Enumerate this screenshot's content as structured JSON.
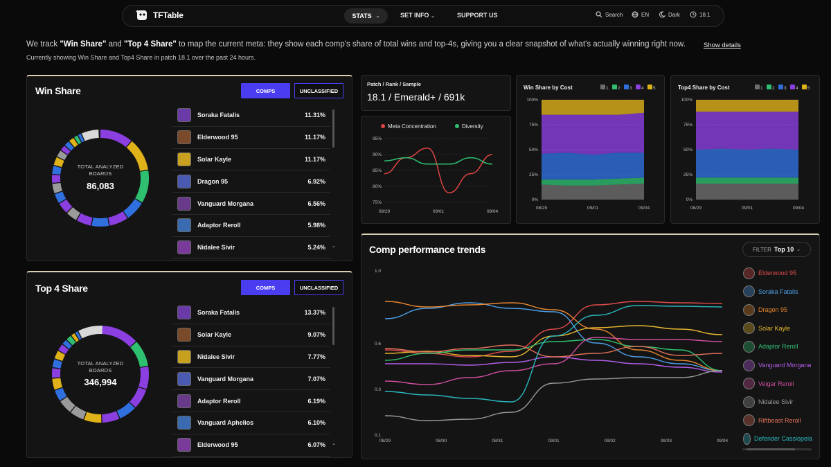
{
  "nav": {
    "brand": "TFTable",
    "stats": "STATS",
    "setinfo": "SET INFO",
    "support": "SUPPORT US",
    "search": "Search",
    "lang": "EN",
    "theme": "Dark",
    "patch": "18.1"
  },
  "intro": {
    "p1": "We track ",
    "q1": "\"Win Share\"",
    "p2": " and ",
    "q2": "\"Top 4 Share\"",
    "p3": " to map the current meta: they show each comp's share of total wins and top-4s, giving you a clear snapshot of what's actually winning right now.",
    "details": "Show details",
    "sub": "Currently showing Win Share and Top4 Share in patch 18.1 over the past 24 hours."
  },
  "win": {
    "title": "Win Share",
    "btn_comps": "COMPS",
    "btn_unclassified": "UNCLASSIFIED",
    "donut_label1": "TOTAL ANALYZED",
    "donut_label2": "BOARDS",
    "donut_value": "86,083",
    "rows": [
      {
        "name": "Soraka Fatalis",
        "pct": "11.31%"
      },
      {
        "name": "Elderwood 95",
        "pct": "11.17%"
      },
      {
        "name": "Solar Kayle",
        "pct": "11.17%"
      },
      {
        "name": "Dragon 95",
        "pct": "6.92%"
      },
      {
        "name": "Vanguard Morgana",
        "pct": "6.56%"
      },
      {
        "name": "Adaptor Reroll",
        "pct": "5.98%"
      },
      {
        "name": "Nidalee Sivir",
        "pct": "5.24%"
      }
    ]
  },
  "top4": {
    "title": "Top 4 Share",
    "btn_comps": "COMPS",
    "btn_unclassified": "UNCLASSIFIED",
    "donut_label1": "TOTAL ANALYZED",
    "donut_label2": "BOARDS",
    "donut_value": "346,994",
    "rows": [
      {
        "name": "Soraka Fatalis",
        "pct": "13.37%"
      },
      {
        "name": "Solar Kayle",
        "pct": "9.07%"
      },
      {
        "name": "Nidalee Sivir",
        "pct": "7.77%"
      },
      {
        "name": "Vanguard Morgana",
        "pct": "7.07%"
      },
      {
        "name": "Adaptor Reroll",
        "pct": "6.19%"
      },
      {
        "name": "Vanguard Aphelios",
        "pct": "6.10%"
      },
      {
        "name": "Elderwood 95",
        "pct": "6.07%"
      }
    ]
  },
  "summary": {
    "label": "Patch / Rank / Sample",
    "value": "18.1 / Emerald+ / 691k"
  },
  "colors": {
    "accent": "#4a3df0",
    "red": "#e04444",
    "green": "#2fbf71",
    "purple": "#8b3fe0",
    "blue": "#2f6fde",
    "yellow": "#e0b21a",
    "gray": "#6e6e6e"
  },
  "chart_data": [
    {
      "type": "line",
      "series": [
        {
          "name": "Meta Concentration",
          "values": [
            84,
            89,
            92,
            78,
            84,
            90
          ]
        },
        {
          "name": "Diversity",
          "values": [
            88,
            89,
            87,
            87,
            89,
            87
          ]
        }
      ],
      "xticks": [
        "08/29",
        "09/01",
        "09/04"
      ],
      "yticks": [
        "95%",
        "90%",
        "85%",
        "80%",
        "75%"
      ],
      "ylim": [
        75,
        95
      ]
    },
    {
      "type": "area",
      "title": "Win Share by Cost",
      "legend": [
        "1",
        "2",
        "3",
        "4",
        "5"
      ],
      "yticks": [
        "100%",
        "75%",
        "50%",
        "25%",
        "0%"
      ],
      "xticks": [
        "08/29",
        "09/01",
        "09/04"
      ],
      "series": [
        {
          "name": "1",
          "values": [
            15,
            14,
            14,
            15,
            16
          ]
        },
        {
          "name": "2",
          "values": [
            5,
            6,
            6,
            6,
            6
          ]
        },
        {
          "name": "3",
          "values": [
            26,
            27,
            25,
            26,
            25
          ]
        },
        {
          "name": "4",
          "values": [
            39,
            38,
            40,
            38,
            40
          ]
        },
        {
          "name": "5",
          "values": [
            15,
            15,
            15,
            15,
            13
          ]
        }
      ]
    },
    {
      "type": "area",
      "title": "Top4 Share by Cost",
      "legend": [
        "1",
        "2",
        "3",
        "4",
        "5"
      ],
      "yticks": [
        "100%",
        "75%",
        "50%",
        "25%",
        "0%"
      ],
      "xticks": [
        "08/29",
        "09/01",
        "09/04"
      ],
      "series": [
        {
          "name": "1",
          "values": [
            16,
            16,
            16,
            16,
            16
          ]
        },
        {
          "name": "2",
          "values": [
            6,
            6,
            6,
            6,
            6
          ]
        },
        {
          "name": "3",
          "values": [
            28,
            29,
            28,
            29,
            28
          ]
        },
        {
          "name": "4",
          "values": [
            38,
            37,
            38,
            37,
            38
          ]
        },
        {
          "name": "5",
          "values": [
            12,
            12,
            12,
            12,
            12
          ]
        }
      ]
    },
    {
      "type": "line",
      "title": "Comp performance trends",
      "filter_label": "FILTER",
      "filter_value": "Top 10",
      "yticks": [
        "1.0",
        "0.6",
        "0.3",
        "0.1"
      ],
      "xticks": [
        "08/29",
        "08/30",
        "08/31",
        "09/01",
        "09/02",
        "09/03",
        "09/04"
      ],
      "series": [
        {
          "name": "Elderwood 95",
          "color": "#e04b4b"
        },
        {
          "name": "Soraka Fatalis",
          "color": "#4ea0e8"
        },
        {
          "name": "Dragon 95",
          "color": "#e8862f"
        },
        {
          "name": "Solar Kayle",
          "color": "#e8b92f"
        },
        {
          "name": "Adaptor Reroll",
          "color": "#2fbf71"
        },
        {
          "name": "Vanguard Morgana",
          "color": "#b35de8"
        },
        {
          "name": "Veigar Reroll",
          "color": "#d04fa0"
        },
        {
          "name": "Nidalee Sivir",
          "color": "#9a9a9a"
        },
        {
          "name": "Riftbeast Reroll",
          "color": "#e0705a"
        },
        {
          "name": "Defender Cassiopeia",
          "color": "#2ab7c0"
        }
      ]
    }
  ]
}
